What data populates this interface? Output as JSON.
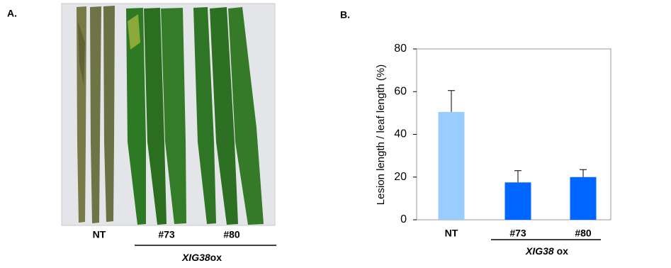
{
  "panel_a": {
    "label": "A.",
    "lanes": [
      "NT",
      "#73",
      "#80"
    ],
    "group_italic": "XIG38",
    "group_suffix": "ox"
  },
  "chart_data": {
    "type": "bar",
    "label": "B.",
    "ylabel": "Lesion length / leaf  length (%)",
    "categories": [
      "NT",
      "#73",
      "#80"
    ],
    "values": [
      50.5,
      17.5,
      20
    ],
    "errors": [
      10,
      5.5,
      3.5
    ],
    "colors": [
      "#99ccff",
      "#0066ff",
      "#0066ff"
    ],
    "ylim": [
      0,
      80
    ],
    "yticks": [
      0,
      20,
      40,
      60,
      80
    ],
    "group_italic": "XIG38",
    "group_suffix": " ox"
  }
}
